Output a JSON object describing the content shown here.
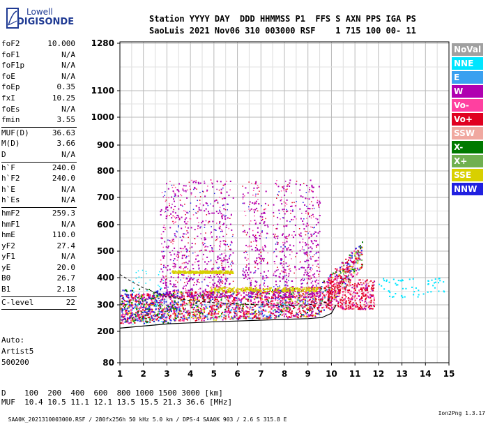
{
  "logo": {
    "line1": "Lowell",
    "line2": "DIGISONDE"
  },
  "header": {
    "line1": "Station YYYY DAY  DDD HHMMSS P1  FFS S AXN PPS IGA PS",
    "line2": "SaoLuis 2021 Nov06 310 003000 RSF    1 715 100 00- 11"
  },
  "params": {
    "group1": [
      {
        "k": "foF2",
        "v": "10.000"
      },
      {
        "k": "foF1",
        "v": "N/A"
      },
      {
        "k": "foF1p",
        "v": "N/A"
      },
      {
        "k": "foE",
        "v": "N/A"
      },
      {
        "k": "foEp",
        "v": "0.35"
      },
      {
        "k": "fxI",
        "v": "10.25"
      },
      {
        "k": "foEs",
        "v": "N/A"
      },
      {
        "k": "fmin",
        "v": "3.55"
      }
    ],
    "group2": [
      {
        "k": "MUF(D)",
        "v": "36.63"
      },
      {
        "k": "M(D)",
        "v": "3.66"
      },
      {
        "k": "D",
        "v": "N/A"
      }
    ],
    "group3": [
      {
        "k": "h`F",
        "v": "240.0"
      },
      {
        "k": "h`F2",
        "v": "240.0"
      },
      {
        "k": "h`E",
        "v": "N/A"
      },
      {
        "k": "h`Es",
        "v": "N/A"
      }
    ],
    "group4": [
      {
        "k": "hmF2",
        "v": "259.3"
      },
      {
        "k": "hmF1",
        "v": "N/A"
      },
      {
        "k": "hmE",
        "v": "110.0"
      },
      {
        "k": "yF2",
        "v": "27.4"
      },
      {
        "k": "yF1",
        "v": "N/A"
      },
      {
        "k": "yE",
        "v": "20.0"
      },
      {
        "k": "B0",
        "v": "26.7"
      },
      {
        "k": "B1",
        "v": "2.18"
      }
    ],
    "group5": [
      {
        "k": "C-level",
        "v": "22"
      }
    ]
  },
  "auto": {
    "line1": "Auto:",
    "line2": "Artist5",
    "line3": "500200"
  },
  "muf_table": {
    "line1": "D    100  200  400  600  800 1000 1500 3000 [km]",
    "line2": "MUF  10.4 10.5 11.1 12.1 13.5 15.5 21.3 36.6 [MHz]"
  },
  "footer": {
    "left": "SAA0K_2021310003000.RSF / 280fx256h 50 kHz 5.0 km / DPS-4 SAA0K 903 / 2.6 S 315.8 E",
    "right": "Ion2Png 1.3.17"
  },
  "legend": [
    {
      "label": "NoVal",
      "color": "#a0a0a0"
    },
    {
      "label": "NNE",
      "color": "#00e5ff"
    },
    {
      "label": "E",
      "color": "#3aa0f0"
    },
    {
      "label": "W",
      "color": "#b000b0"
    },
    {
      "label": "Vo-",
      "color": "#ff40a0"
    },
    {
      "label": "Vo+",
      "color": "#e00020"
    },
    {
      "label": "SSW",
      "color": "#f0a8a0"
    },
    {
      "label": "X-",
      "color": "#007a00"
    },
    {
      "label": "X+",
      "color": "#70b050"
    },
    {
      "label": "SSE",
      "color": "#d8d000"
    },
    {
      "label": "NNW",
      "color": "#2020e0"
    }
  ],
  "chart_data": {
    "type": "scatter",
    "x_ticks": [
      "1",
      "2",
      "3",
      "4",
      "5",
      "6",
      "7",
      "8",
      "9",
      "10",
      "11",
      "12",
      "13",
      "14",
      "15"
    ],
    "y_ticks": [
      "80",
      "200",
      "300",
      "400",
      "500",
      "600",
      "700",
      "800",
      "900",
      "1000",
      "1100",
      "1280"
    ],
    "xlim": [
      1,
      15
    ],
    "y_scale": "stretched (virtual height)",
    "ylim": [
      80,
      1280
    ],
    "grid": true,
    "legend_position": "right",
    "profile_curve": {
      "x": [
        1.0,
        2.0,
        3.0,
        4.0,
        5.0,
        6.0,
        7.0,
        8.0,
        9.0,
        9.6,
        10.0,
        10.2
      ],
      "y": [
        212,
        220,
        228,
        232,
        236,
        239,
        242,
        245,
        248,
        252,
        268,
        300
      ]
    }
  }
}
